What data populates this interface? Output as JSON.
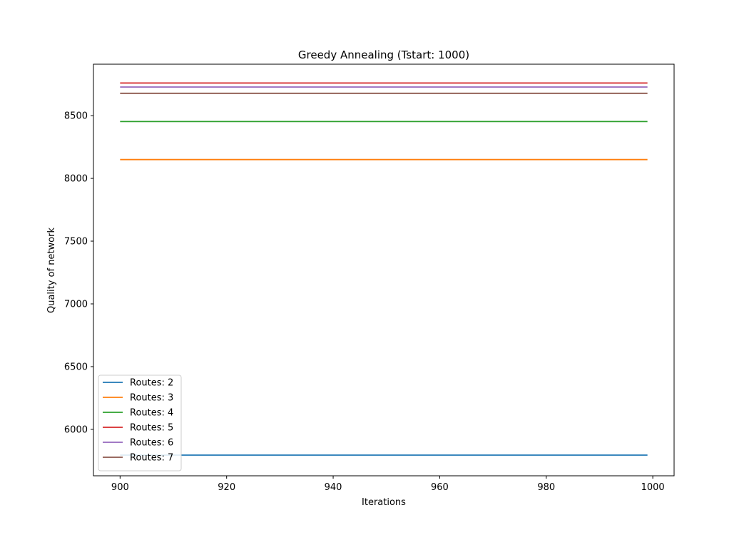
{
  "chart_data": {
    "type": "line",
    "title": "Greedy Annealing (Tstart: 1000)",
    "xlabel": "Iterations",
    "ylabel": "Quality of network",
    "xlim": [
      895,
      1004
    ],
    "ylim": [
      5630,
      8910
    ],
    "xticks": [
      900,
      920,
      940,
      960,
      980,
      1000
    ],
    "yticks": [
      6000,
      6500,
      7000,
      7500,
      8000,
      8500
    ],
    "x": [
      900,
      999
    ],
    "legend_position": "lower left",
    "grid": false,
    "series": [
      {
        "name": "Routes: 2",
        "color": "#1f77b4",
        "values": [
          5795,
          5795
        ]
      },
      {
        "name": "Routes: 3",
        "color": "#ff7f0e",
        "values": [
          8150,
          8150
        ]
      },
      {
        "name": "Routes: 4",
        "color": "#2ca02c",
        "values": [
          8453,
          8453
        ]
      },
      {
        "name": "Routes: 5",
        "color": "#d62728",
        "values": [
          8760,
          8760
        ]
      },
      {
        "name": "Routes: 6",
        "color": "#9467bd",
        "values": [
          8728,
          8728
        ]
      },
      {
        "name": "Routes: 7",
        "color": "#8c564b",
        "values": [
          8678,
          8678
        ]
      }
    ]
  }
}
